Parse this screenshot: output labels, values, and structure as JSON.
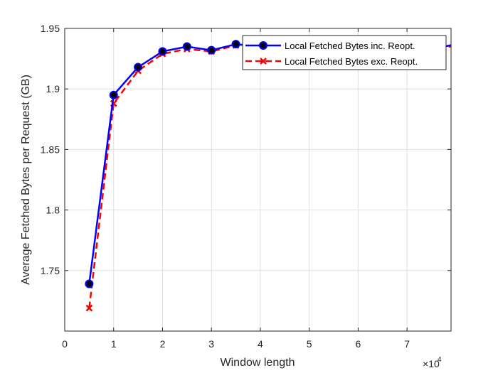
{
  "chart_data": {
    "type": "line",
    "title": "",
    "xlabel": "Window length",
    "ylabel": "Average Fetched Bytes per Request (GB)",
    "x_multiplier_base": "×10",
    "x_multiplier_exp": "4",
    "xlim": [
      0,
      79000
    ],
    "ylim": [
      1.7,
      1.95
    ],
    "xticks": [
      0,
      10000,
      20000,
      30000,
      40000,
      50000,
      60000,
      70000
    ],
    "xtick_labels": [
      "0",
      "1",
      "2",
      "3",
      "4",
      "5",
      "6",
      "7"
    ],
    "yticks": [
      1.75,
      1.8,
      1.85,
      1.9,
      1.95
    ],
    "ytick_labels": [
      "1.75",
      "1.8",
      "1.85",
      "1.9",
      "1.95"
    ],
    "grid": true,
    "legend_position": "top-right",
    "series": [
      {
        "name": "Local Fetched Bytes inc. Reopt.",
        "color": "#0000ff",
        "marker": "circle",
        "line_style": "solid",
        "x": [
          5000,
          10000,
          15000,
          20000,
          25000,
          30000,
          35000,
          40000,
          45000,
          50000,
          55000,
          60000,
          65000,
          70000,
          75000,
          80000
        ],
        "y": [
          1.739,
          1.895,
          1.918,
          1.931,
          1.935,
          1.932,
          1.937,
          1.935,
          1.934,
          1.936,
          1.938,
          1.937,
          1.94,
          1.93,
          1.933,
          1.937
        ]
      },
      {
        "name": "Local Fetched Bytes exc. Reopt.",
        "color": "#ff0000",
        "marker": "x",
        "line_style": "dashed",
        "x": [
          5000,
          10000,
          15000,
          20000,
          25000,
          30000,
          35000,
          40000,
          45000,
          50000,
          55000,
          60000,
          65000,
          70000,
          75000,
          80000
        ],
        "y": [
          1.719,
          1.888,
          1.915,
          1.929,
          1.933,
          1.931,
          1.936,
          1.934,
          1.933,
          1.935,
          1.936,
          1.936,
          1.938,
          1.929,
          1.932,
          1.936
        ]
      }
    ]
  }
}
